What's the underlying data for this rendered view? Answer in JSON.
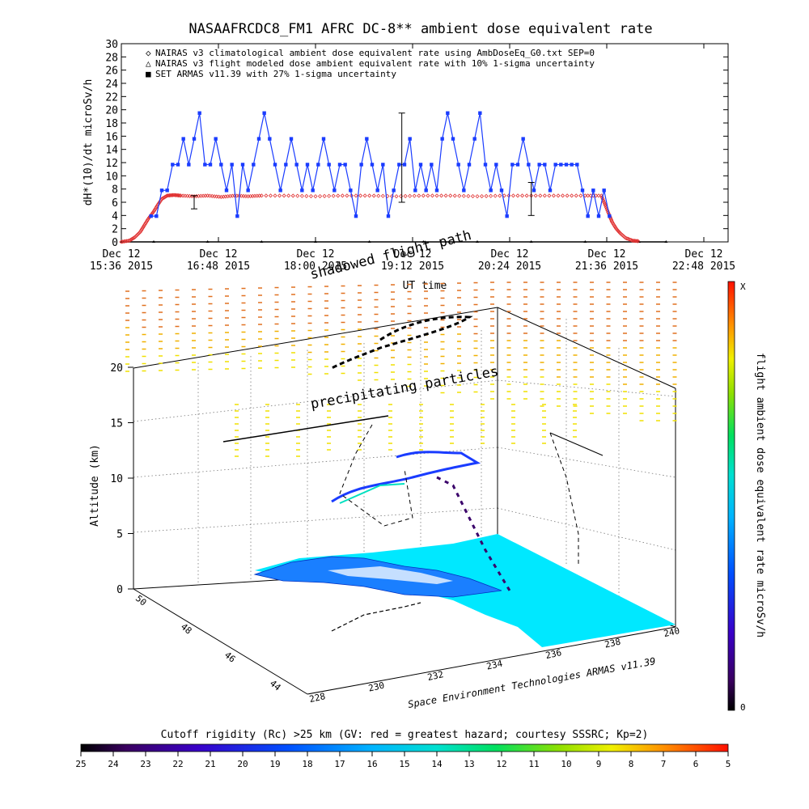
{
  "chart_data": [
    {
      "type": "line",
      "title": "NASAAFRCDC8_FM1 AFRC DC-8** ambient dose equivalent rate",
      "ylabel": "dH*(10)/dt microSv/h",
      "xlabel": "UT time",
      "ylim": [
        0,
        30
      ],
      "y_ticks": [
        "0",
        "2",
        "4",
        "6",
        "8",
        "10",
        "12",
        "14",
        "16",
        "18",
        "20",
        "22",
        "24",
        "26",
        "28",
        "30"
      ],
      "x_ticks": [
        {
          "line1": "Dec 12",
          "line2": "15:36 2015",
          "minutes": 936
        },
        {
          "line1": "Dec 12",
          "line2": "16:48 2015",
          "minutes": 1008
        },
        {
          "line1": "Dec 12",
          "line2": "18:00 2015",
          "minutes": 1080
        },
        {
          "line1": "Dec 12",
          "line2": "19:12 2015",
          "minutes": 1152
        },
        {
          "line1": "Dec 12",
          "line2": "20:24 2015",
          "minutes": 1224
        },
        {
          "line1": "Dec 12",
          "line2": "21:36 2015",
          "minutes": 1296
        },
        {
          "line1": "Dec 12",
          "line2": "22:48 2015",
          "minutes": 1368
        }
      ],
      "legend": [
        {
          "symbol": "◇",
          "label": "NAIRAS v3 climatological ambient dose equivalent rate using AmbDoseEq_G0.txt SEP=0",
          "color": "#e03030"
        },
        {
          "symbol": "△",
          "label": "NAIRAS v3 flight modeled dose ambient equivalent rate with 10% 1-sigma uncertainty",
          "color": "#000000"
        },
        {
          "symbol": "■",
          "label": "SET ARMAS v11.39 with 27% 1-sigma uncertainty",
          "color": "#1a3cff"
        }
      ],
      "series": [
        {
          "name": "NAIRAS v3 climatological ambient dose equivalent rate using AmbDoseEq_G0.txt SEP=0",
          "color": "#e03030",
          "x": [
            936,
            942,
            946,
            950,
            953,
            956,
            960,
            963,
            966,
            970,
            975,
            980,
            990,
            1000,
            1010,
            1020,
            1030,
            1040,
            1060,
            1080,
            1100,
            1120,
            1140,
            1160,
            1180,
            1200,
            1220,
            1240,
            1260,
            1280,
            1292,
            1295,
            1298,
            1300,
            1303,
            1306,
            1310,
            1315,
            1320
          ],
          "y": [
            0,
            0.2,
            0.7,
            1.5,
            2.5,
            3.5,
            4.6,
            5.6,
            6.5,
            7.0,
            7.1,
            7.0,
            6.9,
            7.0,
            6.8,
            7.0,
            6.9,
            7.0,
            7.0,
            6.9,
            7.0,
            7.0,
            6.9,
            7.0,
            7.0,
            6.9,
            7.0,
            7.0,
            7.0,
            7.0,
            7.0,
            5.5,
            4.0,
            3.0,
            2.0,
            1.3,
            0.6,
            0.2,
            0.1
          ]
        },
        {
          "name": "NAIRAS v3 flight modeled dose ambient equivalent rate with 10% 1-sigma uncertainty",
          "color": "#000000",
          "x": [
            936,
            960,
            1000,
            1040,
            1080,
            1120,
            1160,
            1200,
            1240,
            1280,
            1320,
            1340
          ],
          "y": [
            0,
            0,
            0,
            0,
            0,
            0,
            0,
            0,
            0,
            0,
            0,
            0
          ]
        },
        {
          "name": "SET ARMAS v11.39 with 27% 1-sigma uncertainty",
          "color": "#1a3cff",
          "x": [
            958,
            962,
            966,
            970,
            974,
            978,
            982,
            986,
            990,
            994,
            998,
            1002,
            1006,
            1010,
            1014,
            1018,
            1022,
            1026,
            1030,
            1034,
            1038,
            1042,
            1046,
            1050,
            1054,
            1058,
            1062,
            1066,
            1070,
            1074,
            1078,
            1082,
            1086,
            1090,
            1094,
            1098,
            1102,
            1106,
            1110,
            1114,
            1118,
            1122,
            1126,
            1130,
            1134,
            1138,
            1142,
            1146,
            1150,
            1154,
            1158,
            1162,
            1166,
            1170,
            1174,
            1178,
            1182,
            1186,
            1190,
            1194,
            1198,
            1202,
            1206,
            1210,
            1214,
            1218,
            1222,
            1226,
            1230,
            1234,
            1238,
            1242,
            1246,
            1250,
            1254,
            1258,
            1262,
            1266,
            1270,
            1274,
            1278,
            1282,
            1286,
            1290,
            1294,
            1298
          ],
          "y": [
            3.9,
            3.9,
            7.8,
            7.8,
            11.7,
            11.7,
            15.6,
            11.7,
            15.6,
            19.5,
            11.7,
            11.7,
            15.6,
            11.7,
            7.8,
            11.7,
            3.9,
            11.7,
            7.8,
            11.7,
            15.6,
            19.5,
            15.6,
            11.7,
            7.8,
            11.7,
            15.6,
            11.7,
            7.8,
            11.7,
            7.8,
            11.7,
            15.6,
            11.7,
            7.8,
            11.7,
            11.7,
            7.8,
            3.9,
            11.7,
            15.6,
            11.7,
            7.8,
            11.7,
            3.9,
            7.8,
            11.7,
            11.7,
            15.6,
            7.8,
            11.7,
            7.8,
            11.7,
            7.8,
            15.6,
            19.5,
            15.6,
            11.7,
            7.8,
            11.7,
            15.6,
            19.5,
            11.7,
            7.8,
            11.7,
            7.8,
            3.9,
            11.7,
            11.7,
            15.6,
            11.7,
            7.8,
            11.7,
            11.7,
            7.8,
            11.7,
            11.7,
            11.7,
            11.7,
            11.7,
            7.8,
            3.9,
            7.8,
            3.9,
            7.8,
            3.9
          ]
        }
      ],
      "error_bars": [
        {
          "x": 990,
          "y": 11.7,
          "low": 5.0,
          "high": 7.0
        },
        {
          "x": 1144,
          "y": 12.5,
          "low": 6.0,
          "high": 19.5
        },
        {
          "x": 1240,
          "y": 7.8,
          "low": 4.0,
          "high": 9.0
        }
      ]
    },
    {
      "type": "3d-scatter",
      "zlabel": "Altitude (km)",
      "z_ticks": [
        "0",
        "5",
        "10",
        "15",
        "20"
      ],
      "lat_ticks": [
        "44",
        "46",
        "48",
        "50"
      ],
      "lon_ticks": [
        "228",
        "230",
        "232",
        "234",
        "236",
        "238",
        "240"
      ],
      "colorbar_right": {
        "label": "flight ambient dose equivalent rate microSv/h",
        "top": "X",
        "bottom": "0"
      },
      "colorbar_bottom": {
        "label": "Cutoff rigidity (Rc) >25 km (GV: red = greatest hazard; courtesy SSSRC; Kp=2)",
        "ticks": [
          "25",
          "24",
          "23",
          "22",
          "21",
          "20",
          "19",
          "18",
          "17",
          "16",
          "15",
          "14",
          "13",
          "12",
          "11",
          "10",
          "9",
          "8",
          "7",
          "6",
          "5"
        ]
      },
      "annotations": [
        "precipitating particles",
        "shadowed flight path"
      ],
      "credit": "Space Environment Technologies ARMAS v11.39"
    }
  ]
}
